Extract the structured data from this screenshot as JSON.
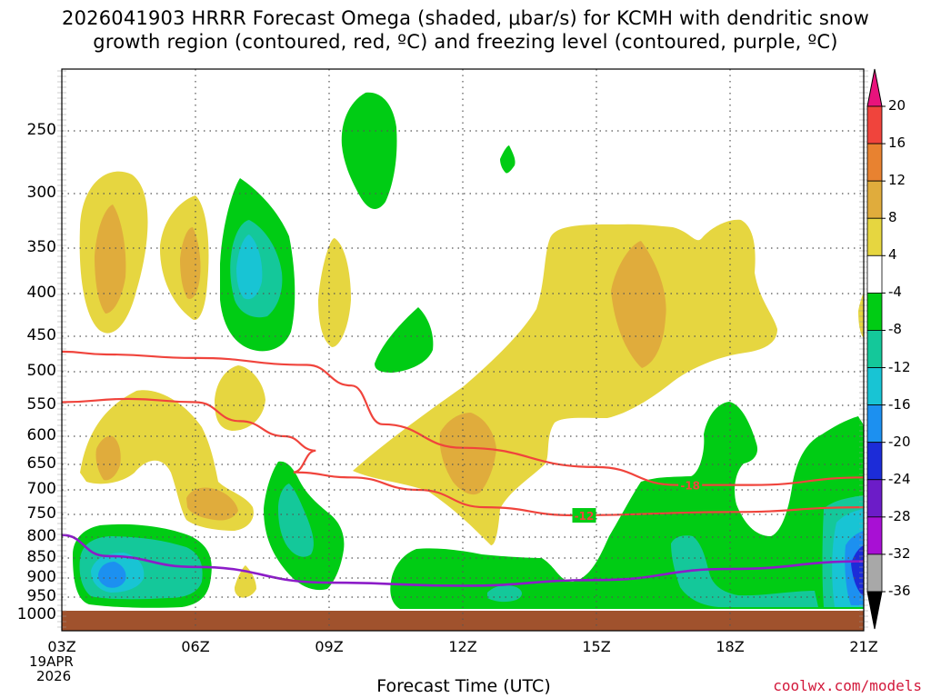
{
  "title": {
    "line1": "2026041903 HRRR Forecast Omega (shaded, μbar/s) for KCMH with dendritic snow",
    "line2": "growth region (contoured, red, ºC) and freezing level (contoured, purple, ºC)"
  },
  "xaxis": {
    "label": "Forecast Time (UTC)",
    "ticks": [
      "03Z",
      "06Z",
      "09Z",
      "12Z",
      "15Z",
      "18Z",
      "21Z"
    ],
    "date_line1": "19APR",
    "date_line2": "2026"
  },
  "yaxis": {
    "ticks": [
      "250",
      "300",
      "350",
      "400",
      "450",
      "500",
      "550",
      "600",
      "650",
      "700",
      "750",
      "800",
      "850",
      "900",
      "950",
      "1000"
    ]
  },
  "colorbar": {
    "ticks": [
      "20",
      "16",
      "12",
      "8",
      "4",
      "-4",
      "-8",
      "-12",
      "-16",
      "-20",
      "-24",
      "-28",
      "-32",
      "-36"
    ],
    "colors": [
      "#e8137c",
      "#f0443c",
      "#e88230",
      "#e0ac3c",
      "#e6d640",
      "#ffffff",
      "#00cc14",
      "#14c89a",
      "#18c4d4",
      "#1c90f0",
      "#1c2cd8",
      "#6c1cc8",
      "#a810d4",
      "#a8a8a8",
      "#000000"
    ]
  },
  "credit": "coolwx.com/models",
  "chart_data": {
    "type": "heatmap",
    "title": "2026041903 HRRR Forecast Omega (shaded, μbar/s) for KCMH",
    "x_hours_utc": [
      3,
      6,
      9,
      12,
      15,
      18,
      21
    ],
    "y_pressure_hpa": [
      250,
      300,
      350,
      400,
      450,
      500,
      550,
      600,
      650,
      700,
      750,
      800,
      850,
      900,
      950,
      1000
    ],
    "xlim_hours": [
      3,
      21
    ],
    "ylim_hpa": [
      150,
      1030
    ],
    "omega_features_ubar_s": [
      {
        "kind": "ascent",
        "hour": 3.9,
        "hpa": 370,
        "max": 8
      },
      {
        "kind": "ascent",
        "hour": 5.9,
        "hpa": 365,
        "max": 8
      },
      {
        "kind": "descent",
        "hour": 7.0,
        "hpa": 380,
        "min": -16
      },
      {
        "kind": "descent",
        "hour": 10.0,
        "hpa": 265,
        "min": -8
      },
      {
        "kind": "ascent",
        "hour": 8.8,
        "hpa": 410,
        "max": 4
      },
      {
        "kind": "descent",
        "hour": 10.9,
        "hpa": 455,
        "min": -8
      },
      {
        "kind": "ascent",
        "hour": 16.0,
        "hpa": 410,
        "max": 8
      },
      {
        "kind": "ascent",
        "hour": 12.0,
        "hpa": 640,
        "max": 8
      },
      {
        "kind": "ascent",
        "hour": 6.5,
        "hpa": 750,
        "max": 8
      },
      {
        "kind": "descent",
        "hour": 4.4,
        "hpa": 900,
        "min": -16
      },
      {
        "kind": "descent",
        "hour": 8.5,
        "hpa": 780,
        "min": -12
      },
      {
        "kind": "descent",
        "hour": 17.0,
        "hpa": 880,
        "min": -8
      },
      {
        "kind": "descent",
        "hour": 21.0,
        "hpa": 870,
        "min": -24
      }
    ],
    "dgz_contours_c": [
      {
        "label": "-18",
        "points": [
          [
            3.0,
            471
          ],
          [
            4.0,
            475
          ],
          [
            6.0,
            480
          ],
          [
            8.5,
            490
          ],
          [
            9.5,
            520
          ],
          [
            10.2,
            580
          ],
          [
            12.0,
            620
          ],
          [
            15.0,
            655
          ],
          [
            16.8,
            690
          ],
          [
            18.5,
            690
          ],
          [
            21.0,
            675
          ]
        ]
      },
      {
        "label": "-12",
        "points": [
          [
            3.0,
            545
          ],
          [
            4.5,
            540
          ],
          [
            6.0,
            545
          ],
          [
            7.0,
            575
          ],
          [
            8.0,
            600
          ],
          [
            8.7,
            625
          ],
          [
            8.2,
            665
          ],
          [
            9.5,
            675
          ],
          [
            11.0,
            700
          ],
          [
            12.5,
            735
          ],
          [
            14.5,
            752
          ],
          [
            18.0,
            745
          ],
          [
            21.0,
            735
          ]
        ]
      }
    ],
    "freezing_level_contour_c": [
      {
        "label": "0",
        "points": [
          [
            3.0,
            795
          ],
          [
            4.0,
            845
          ],
          [
            6.0,
            872
          ],
          [
            9.0,
            912
          ],
          [
            12.0,
            920
          ],
          [
            15.0,
            905
          ],
          [
            18.0,
            877
          ],
          [
            21.0,
            858
          ]
        ]
      }
    ],
    "colorbar_levels": [
      20,
      16,
      12,
      8,
      4,
      -4,
      -8,
      -12,
      -16,
      -20,
      -24,
      -28,
      -32,
      -36
    ]
  }
}
